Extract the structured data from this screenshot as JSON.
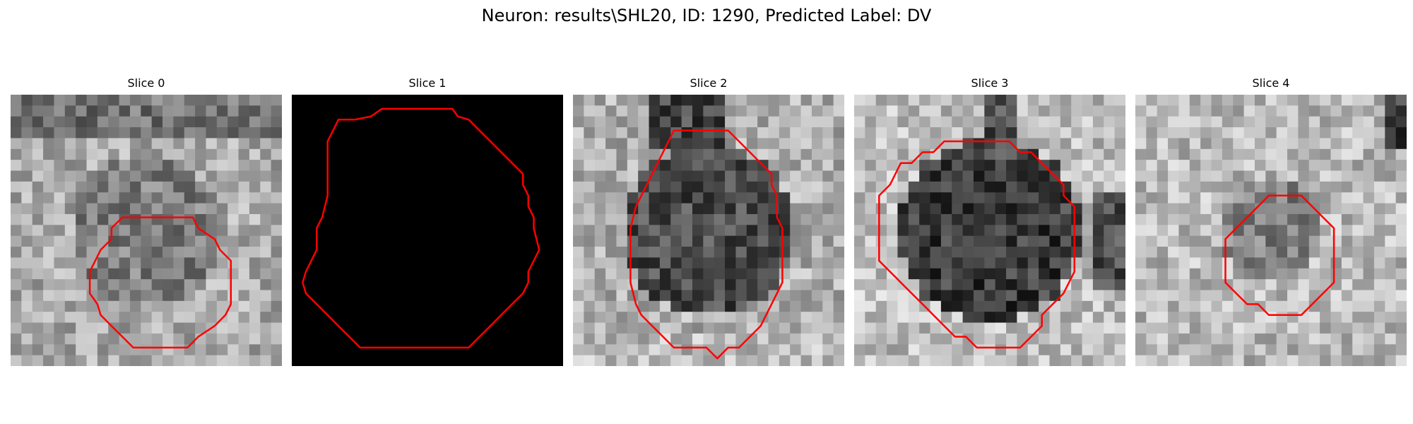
{
  "figure": {
    "title": "Neuron: results\\SHL20, ID: 1290, Predicted Label: DV"
  },
  "panels": [
    {
      "title": "Slice 0",
      "mode": "bright",
      "seed": 11,
      "contour": [
        [
          14.3,
          11.3
        ],
        [
          16.8,
          11.3
        ],
        [
          17.3,
          12.3
        ],
        [
          18.8,
          13.3
        ],
        [
          19.3,
          14.3
        ],
        [
          20.3,
          15.3
        ],
        [
          20.3,
          19.3
        ],
        [
          19.8,
          20.3
        ],
        [
          18.8,
          21.3
        ],
        [
          17.3,
          22.3
        ],
        [
          16.3,
          23.3
        ],
        [
          11.3,
          23.3
        ],
        [
          10.3,
          22.3
        ],
        [
          9.3,
          21.3
        ],
        [
          8.3,
          20.3
        ],
        [
          8.0,
          19.3
        ],
        [
          7.3,
          18.3
        ],
        [
          7.3,
          16.3
        ],
        [
          7.8,
          15.3
        ],
        [
          8.3,
          14.3
        ],
        [
          9.3,
          13.3
        ],
        [
          9.3,
          12.3
        ],
        [
          10.3,
          11.3
        ]
      ]
    },
    {
      "title": "Slice 1",
      "mode": "black",
      "seed": 0,
      "contour": [
        [
          9.8,
          1.3
        ],
        [
          14.8,
          1.3
        ],
        [
          15.3,
          2.0
        ],
        [
          16.3,
          2.3
        ],
        [
          17.3,
          3.3
        ],
        [
          18.3,
          4.3
        ],
        [
          19.3,
          5.3
        ],
        [
          20.3,
          6.3
        ],
        [
          21.3,
          7.3
        ],
        [
          21.3,
          8.3
        ],
        [
          21.8,
          9.3
        ],
        [
          21.8,
          10.3
        ],
        [
          22.3,
          11.3
        ],
        [
          22.3,
          12.3
        ],
        [
          22.8,
          14.3
        ],
        [
          22.3,
          15.3
        ],
        [
          21.8,
          16.3
        ],
        [
          21.8,
          17.3
        ],
        [
          21.3,
          18.3
        ],
        [
          20.3,
          19.3
        ],
        [
          19.3,
          20.3
        ],
        [
          18.3,
          21.3
        ],
        [
          17.3,
          22.3
        ],
        [
          16.3,
          23.3
        ],
        [
          13.3,
          23.3
        ],
        [
          6.3,
          23.3
        ],
        [
          5.3,
          22.3
        ],
        [
          4.3,
          21.3
        ],
        [
          3.3,
          20.3
        ],
        [
          2.3,
          19.3
        ],
        [
          1.3,
          18.3
        ],
        [
          1.0,
          17.3
        ],
        [
          1.3,
          16.3
        ],
        [
          1.8,
          15.3
        ],
        [
          2.3,
          14.3
        ],
        [
          2.3,
          12.3
        ],
        [
          2.8,
          11.3
        ],
        [
          3.3,
          9.3
        ],
        [
          3.3,
          4.3
        ],
        [
          3.8,
          3.3
        ],
        [
          4.3,
          2.3
        ],
        [
          5.8,
          2.3
        ],
        [
          7.3,
          2.0
        ],
        [
          8.3,
          1.3
        ]
      ]
    },
    {
      "title": "Slice 2",
      "mode": "dark",
      "seed": 33,
      "contour": [
        [
          9.3,
          3.3
        ],
        [
          14.3,
          3.3
        ],
        [
          15.3,
          4.3
        ],
        [
          16.3,
          5.3
        ],
        [
          17.3,
          6.3
        ],
        [
          18.3,
          7.3
        ],
        [
          18.3,
          8.3
        ],
        [
          18.8,
          9.3
        ],
        [
          18.8,
          11.3
        ],
        [
          19.3,
          12.3
        ],
        [
          19.3,
          17.3
        ],
        [
          18.8,
          18.3
        ],
        [
          18.3,
          19.3
        ],
        [
          17.8,
          20.3
        ],
        [
          17.3,
          21.3
        ],
        [
          16.3,
          22.3
        ],
        [
          15.3,
          23.3
        ],
        [
          14.3,
          23.3
        ],
        [
          13.3,
          24.3
        ],
        [
          12.3,
          23.3
        ],
        [
          9.3,
          23.3
        ],
        [
          8.3,
          22.3
        ],
        [
          7.3,
          21.3
        ],
        [
          6.3,
          20.3
        ],
        [
          5.8,
          19.3
        ],
        [
          5.3,
          17.3
        ],
        [
          5.3,
          12.3
        ],
        [
          5.8,
          10.3
        ],
        [
          6.3,
          9.3
        ],
        [
          6.8,
          8.3
        ],
        [
          7.3,
          7.3
        ],
        [
          7.8,
          6.3
        ],
        [
          8.3,
          5.3
        ],
        [
          8.8,
          4.3
        ]
      ]
    },
    {
      "title": "Slice 3",
      "mode": "dark2",
      "seed": 47,
      "contour": [
        [
          8.3,
          4.3
        ],
        [
          14.3,
          4.3
        ],
        [
          15.3,
          5.3
        ],
        [
          16.3,
          5.3
        ],
        [
          17.3,
          6.3
        ],
        [
          18.3,
          7.3
        ],
        [
          19.3,
          8.3
        ],
        [
          19.3,
          9.3
        ],
        [
          20.3,
          10.3
        ],
        [
          20.3,
          16.3
        ],
        [
          19.8,
          17.3
        ],
        [
          19.3,
          18.3
        ],
        [
          18.3,
          19.3
        ],
        [
          17.3,
          20.3
        ],
        [
          17.3,
          21.3
        ],
        [
          16.3,
          22.3
        ],
        [
          15.3,
          23.3
        ],
        [
          11.3,
          23.3
        ],
        [
          10.3,
          22.3
        ],
        [
          9.3,
          22.3
        ],
        [
          8.3,
          21.3
        ],
        [
          7.3,
          20.3
        ],
        [
          6.3,
          19.3
        ],
        [
          5.3,
          18.3
        ],
        [
          4.3,
          17.3
        ],
        [
          3.3,
          16.3
        ],
        [
          2.3,
          15.3
        ],
        [
          2.3,
          9.3
        ],
        [
          3.3,
          8.3
        ],
        [
          3.8,
          7.3
        ],
        [
          4.3,
          6.3
        ],
        [
          5.3,
          6.3
        ],
        [
          6.3,
          5.3
        ],
        [
          7.3,
          5.3
        ]
      ]
    },
    {
      "title": "Slice 4",
      "mode": "bright2",
      "seed": 59,
      "contour": [
        [
          12.3,
          9.3
        ],
        [
          15.3,
          9.3
        ],
        [
          16.3,
          10.3
        ],
        [
          17.3,
          11.3
        ],
        [
          18.3,
          12.3
        ],
        [
          18.3,
          17.3
        ],
        [
          17.3,
          18.3
        ],
        [
          16.3,
          19.3
        ],
        [
          15.3,
          20.3
        ],
        [
          12.3,
          20.3
        ],
        [
          11.3,
          19.3
        ],
        [
          10.3,
          19.3
        ],
        [
          9.3,
          18.3
        ],
        [
          8.3,
          17.3
        ],
        [
          8.3,
          13.3
        ],
        [
          9.3,
          12.3
        ],
        [
          10.3,
          11.3
        ],
        [
          11.3,
          10.3
        ]
      ]
    }
  ],
  "colors": {
    "contour": "#ff0000",
    "background": "#ffffff"
  }
}
